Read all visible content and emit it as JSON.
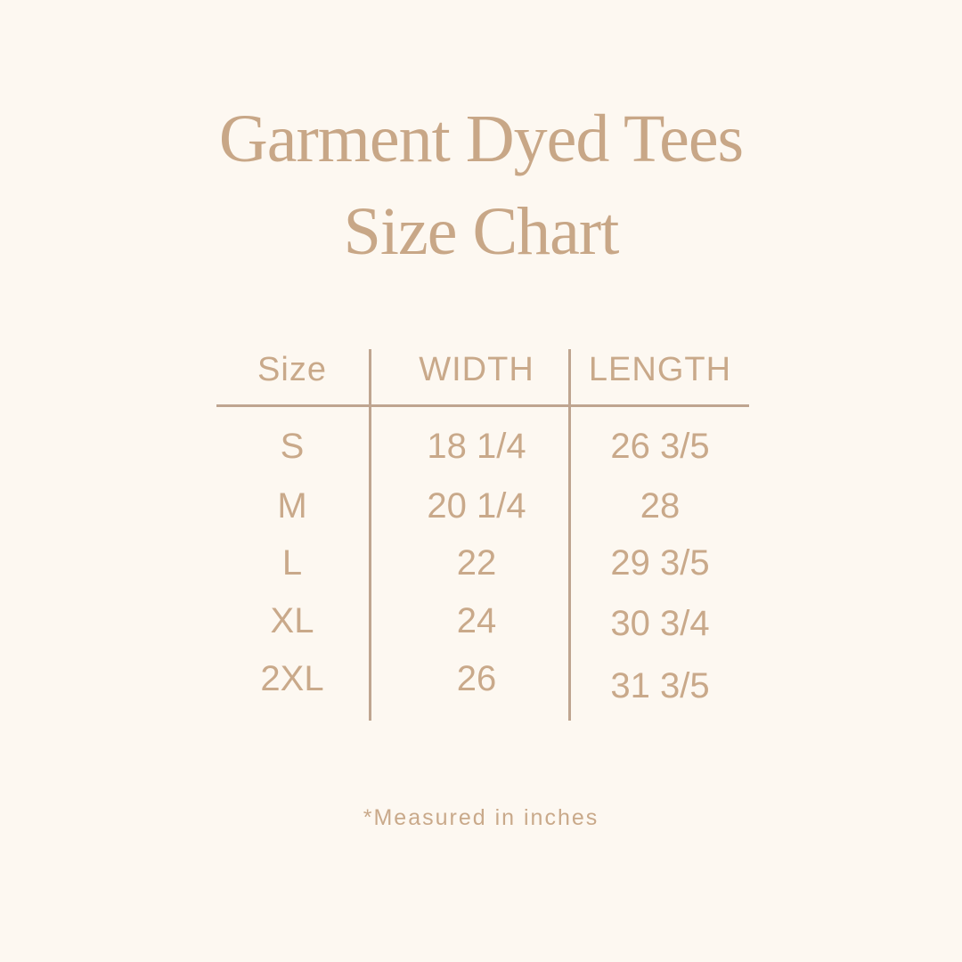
{
  "title_line1": "Garment Dyed Tees",
  "title_line2": "Size Chart",
  "colors": {
    "background": "#fdf8f1",
    "text": "#c9a98a",
    "rules": "#bfa590"
  },
  "chart_data": {
    "type": "table",
    "columns": [
      "Size",
      "WIDTH",
      "LENGTH"
    ],
    "rows": [
      [
        "S",
        "18 1/4",
        "26 3/5"
      ],
      [
        "M",
        "20 1/4",
        "28"
      ],
      [
        "L",
        "22",
        "29 3/5"
      ],
      [
        "XL",
        "24",
        "30 3/4"
      ],
      [
        "2XL",
        "26",
        "31 3/5"
      ]
    ]
  },
  "footnote": "*Measured in inches"
}
